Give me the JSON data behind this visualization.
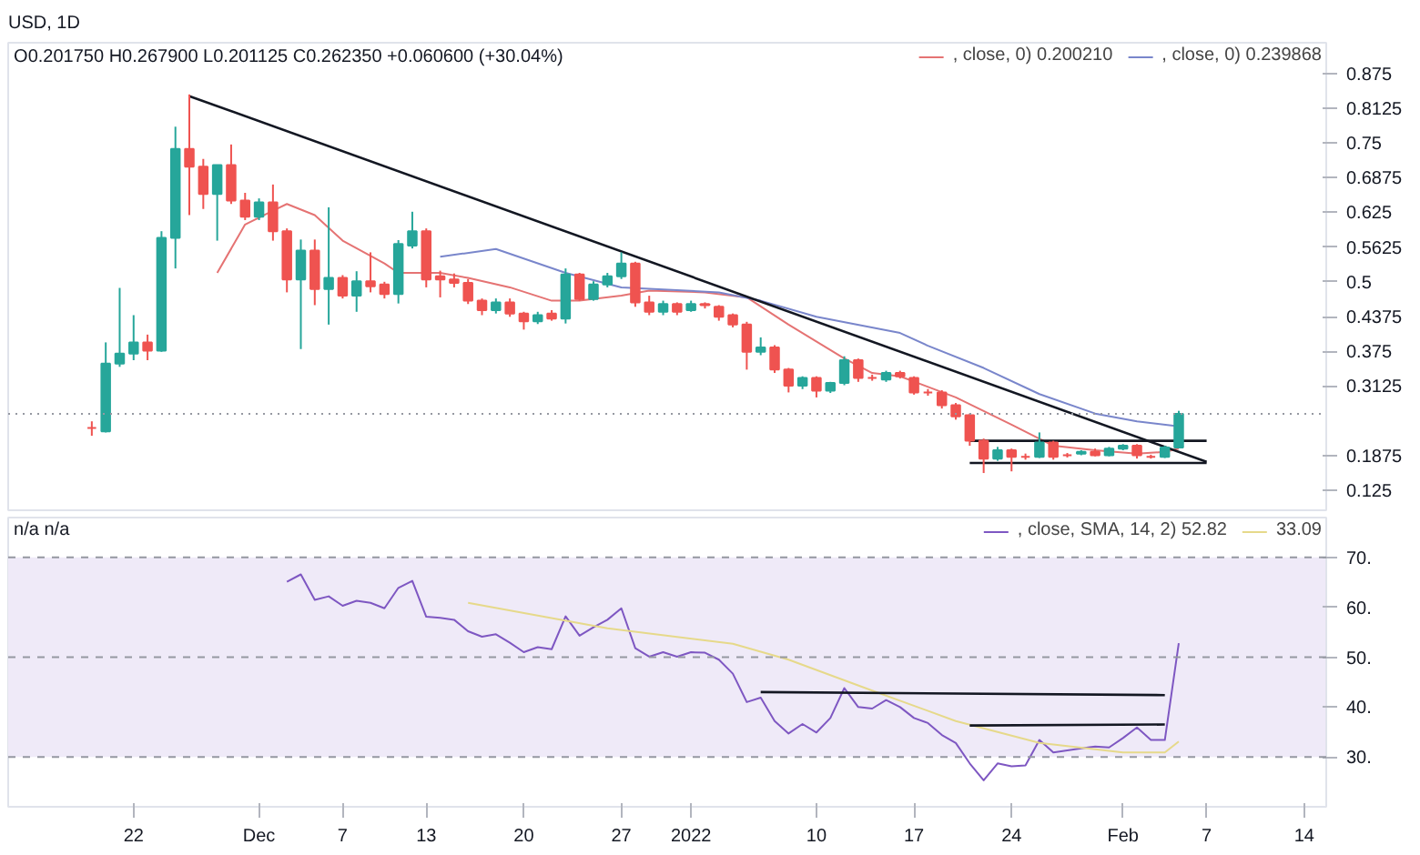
{
  "chart_data": [
    {
      "type": "candlestick",
      "title": "USD, 1D",
      "annotations": [
        "O0.201750 H0.267900 L0.201125 C0.262350 +0.060600 (+30.04%)"
      ],
      "x": [
        "2021-11-19",
        "2021-11-20",
        "2021-11-21",
        "2021-11-22",
        "2021-11-23",
        "2021-11-24",
        "2021-11-25",
        "2021-11-26",
        "2021-11-27",
        "2021-11-28",
        "2021-11-29",
        "2021-11-30",
        "2021-12-01",
        "2021-12-02",
        "2021-12-03",
        "2021-12-04",
        "2021-12-05",
        "2021-12-06",
        "2021-12-07",
        "2021-12-08",
        "2021-12-09",
        "2021-12-10",
        "2021-12-11",
        "2021-12-12",
        "2021-12-13",
        "2021-12-14",
        "2021-12-15",
        "2021-12-16",
        "2021-12-17",
        "2021-12-18",
        "2021-12-19",
        "2021-12-20",
        "2021-12-21",
        "2021-12-22",
        "2021-12-23",
        "2021-12-24",
        "2021-12-25",
        "2021-12-26",
        "2021-12-27",
        "2021-12-28",
        "2021-12-29",
        "2021-12-30",
        "2021-12-31",
        "2022-01-01",
        "2022-01-02",
        "2022-01-03",
        "2022-01-04",
        "2022-01-05",
        "2022-01-06",
        "2022-01-07",
        "2022-01-08",
        "2022-01-09",
        "2022-01-10",
        "2022-01-11",
        "2022-01-12",
        "2022-01-13",
        "2022-01-14",
        "2022-01-15",
        "2022-01-16",
        "2022-01-17",
        "2022-01-18",
        "2022-01-19",
        "2022-01-20",
        "2022-01-21",
        "2022-01-22",
        "2022-01-23",
        "2022-01-24",
        "2022-01-25",
        "2022-01-26",
        "2022-01-27",
        "2022-01-28",
        "2022-01-29",
        "2022-01-30",
        "2022-01-31",
        "2022-02-01",
        "2022-02-02",
        "2022-02-03",
        "2022-02-04",
        "2022-02-05"
      ],
      "ohlc": [
        [
          0.237,
          0.249,
          0.223,
          0.237
        ],
        [
          0.231,
          0.391,
          0.229,
          0.353
        ],
        [
          0.353,
          0.489,
          0.347,
          0.371
        ],
        [
          0.371,
          0.44,
          0.359,
          0.391
        ],
        [
          0.391,
          0.405,
          0.359,
          0.376
        ],
        [
          0.376,
          0.591,
          0.374,
          0.579
        ],
        [
          0.579,
          0.779,
          0.524,
          0.739
        ],
        [
          0.739,
          0.837,
          0.62,
          0.707
        ],
        [
          0.707,
          0.721,
          0.631,
          0.658
        ],
        [
          0.658,
          0.71,
          0.574,
          0.71
        ],
        [
          0.71,
          0.747,
          0.64,
          0.646
        ],
        [
          0.646,
          0.66,
          0.611,
          0.617
        ],
        [
          0.617,
          0.65,
          0.611,
          0.643
        ],
        [
          0.643,
          0.675,
          0.574,
          0.591
        ],
        [
          0.591,
          0.596,
          0.481,
          0.504
        ],
        [
          0.504,
          0.576,
          0.379,
          0.556
        ],
        [
          0.556,
          0.576,
          0.458,
          0.487
        ],
        [
          0.487,
          0.634,
          0.423,
          0.507
        ],
        [
          0.507,
          0.512,
          0.47,
          0.475
        ],
        [
          0.475,
          0.519,
          0.446,
          0.501
        ],
        [
          0.501,
          0.553,
          0.481,
          0.492
        ],
        [
          0.495,
          0.5,
          0.47,
          0.478
        ],
        [
          0.478,
          0.575,
          0.461,
          0.568
        ],
        [
          0.565,
          0.626,
          0.56,
          0.591
        ],
        [
          0.591,
          0.596,
          0.49,
          0.504
        ],
        [
          0.51,
          0.52,
          0.472,
          0.504
        ],
        [
          0.504,
          0.515,
          0.49,
          0.498
        ],
        [
          0.498,
          0.505,
          0.46,
          0.466
        ],
        [
          0.466,
          0.47,
          0.44,
          0.449
        ],
        [
          0.449,
          0.47,
          0.443,
          0.463
        ],
        [
          0.463,
          0.47,
          0.437,
          0.443
        ],
        [
          0.443,
          0.446,
          0.414,
          0.429
        ],
        [
          0.429,
          0.446,
          0.424,
          0.44
        ],
        [
          0.443,
          0.449,
          0.43,
          0.434
        ],
        [
          0.434,
          0.524,
          0.425,
          0.513
        ],
        [
          0.513,
          0.516,
          0.466,
          0.469
        ],
        [
          0.469,
          0.501,
          0.466,
          0.495
        ],
        [
          0.495,
          0.516,
          0.49,
          0.51
        ],
        [
          0.51,
          0.553,
          0.505,
          0.533
        ],
        [
          0.533,
          0.536,
          0.455,
          0.463
        ],
        [
          0.463,
          0.475,
          0.44,
          0.446
        ],
        [
          0.446,
          0.466,
          0.44,
          0.46
        ],
        [
          0.46,
          0.463,
          0.44,
          0.446
        ],
        [
          0.449,
          0.466,
          0.446,
          0.46
        ],
        [
          0.46,
          0.463,
          0.452,
          0.458
        ],
        [
          0.455,
          0.458,
          0.43,
          0.437
        ],
        [
          0.44,
          0.443,
          0.418,
          0.423
        ],
        [
          0.423,
          0.428,
          0.342,
          0.374
        ],
        [
          0.374,
          0.4,
          0.368,
          0.382
        ],
        [
          0.382,
          0.386,
          0.336,
          0.342
        ],
        [
          0.342,
          0.345,
          0.301,
          0.313
        ],
        [
          0.313,
          0.33,
          0.307,
          0.327
        ],
        [
          0.327,
          0.33,
          0.292,
          0.304
        ],
        [
          0.304,
          0.32,
          0.3,
          0.318
        ],
        [
          0.318,
          0.366,
          0.314,
          0.359
        ],
        [
          0.359,
          0.362,
          0.32,
          0.327
        ],
        [
          0.327,
          0.333,
          0.322,
          0.327
        ],
        [
          0.324,
          0.34,
          0.32,
          0.336
        ],
        [
          0.336,
          0.34,
          0.326,
          0.33
        ],
        [
          0.327,
          0.33,
          0.297,
          0.301
        ],
        [
          0.301,
          0.307,
          0.295,
          0.301
        ],
        [
          0.301,
          0.305,
          0.272,
          0.278
        ],
        [
          0.278,
          0.282,
          0.252,
          0.258
        ],
        [
          0.26,
          0.263,
          0.205,
          0.214
        ],
        [
          0.214,
          0.218,
          0.156,
          0.182
        ],
        [
          0.182,
          0.203,
          0.178,
          0.197
        ],
        [
          0.197,
          0.2,
          0.159,
          0.185
        ],
        [
          0.185,
          0.191,
          0.18,
          0.185
        ],
        [
          0.185,
          0.229,
          0.183,
          0.211
        ],
        [
          0.211,
          0.214,
          0.18,
          0.185
        ],
        [
          0.188,
          0.192,
          0.184,
          0.188
        ],
        [
          0.191,
          0.197,
          0.188,
          0.194
        ],
        [
          0.194,
          0.2,
          0.186,
          0.188
        ],
        [
          0.188,
          0.203,
          0.186,
          0.2
        ],
        [
          0.2,
          0.208,
          0.197,
          0.205
        ],
        [
          0.205,
          0.208,
          0.182,
          0.188
        ],
        [
          0.185,
          0.189,
          0.182,
          0.185
        ],
        [
          0.185,
          0.205,
          0.183,
          0.202
        ],
        [
          0.20175,
          0.2679,
          0.201125,
          0.26235
        ]
      ],
      "colors": [
        "#ef5350",
        "#26a69a",
        "#26a69a",
        "#26a69a",
        "#ef5350",
        "#26a69a",
        "#26a69a",
        "#ef5350",
        "#ef5350",
        "#26a69a",
        "#ef5350",
        "#ef5350",
        "#26a69a",
        "#ef5350",
        "#ef5350",
        "#26a69a",
        "#ef5350",
        "#26a69a",
        "#ef5350",
        "#26a69a",
        "#ef5350",
        "#ef5350",
        "#26a69a",
        "#26a69a",
        "#ef5350",
        "#ef5350",
        "#ef5350",
        "#ef5350",
        "#ef5350",
        "#26a69a",
        "#ef5350",
        "#ef5350",
        "#26a69a",
        "#ef5350",
        "#26a69a",
        "#ef5350",
        "#26a69a",
        "#26a69a",
        "#26a69a",
        "#ef5350",
        "#ef5350",
        "#26a69a",
        "#ef5350",
        "#26a69a",
        "#ef5350",
        "#ef5350",
        "#ef5350",
        "#ef5350",
        "#26a69a",
        "#ef5350",
        "#ef5350",
        "#26a69a",
        "#ef5350",
        "#26a69a",
        "#26a69a",
        "#ef5350",
        "#ef5350",
        "#26a69a",
        "#ef5350",
        "#ef5350",
        "#ef5350",
        "#ef5350",
        "#ef5350",
        "#ef5350",
        "#ef5350",
        "#26a69a",
        "#ef5350",
        "#ef5350",
        "#26a69a",
        "#ef5350",
        "#ef5350",
        "#26a69a",
        "#ef5350",
        "#26a69a",
        "#26a69a",
        "#ef5350",
        "#ef5350",
        "#26a69a",
        "#26a69a"
      ],
      "series": [
        {
          "type": "line",
          "name": ", close, 0) 0.200210",
          "color": "#e57373",
          "x": [
            "2021-11-28",
            "2021-11-30",
            "2021-12-02",
            "2021-12-03",
            "2021-12-05",
            "2021-12-07",
            "2021-12-10",
            "2021-12-11",
            "2021-12-13",
            "2021-12-14",
            "2021-12-16",
            "2021-12-19",
            "2021-12-22",
            "2021-12-24",
            "2021-12-27",
            "2021-12-29",
            "2022-01-02",
            "2022-01-05",
            "2022-01-08",
            "2022-01-12",
            "2022-01-14",
            "2022-01-16",
            "2022-01-20",
            "2022-01-24",
            "2022-01-27",
            "2022-01-30",
            "2022-02-02",
            "2022-02-04",
            "2022-02-05"
          ],
          "values": [
            0.516,
            0.603,
            0.628,
            0.64,
            0.62,
            0.574,
            0.533,
            0.516,
            0.516,
            0.516,
            0.507,
            0.49,
            0.466,
            0.466,
            0.475,
            0.484,
            0.481,
            0.472,
            0.423,
            0.362,
            0.336,
            0.33,
            0.292,
            0.243,
            0.205,
            0.197,
            0.191,
            0.194,
            0.2
          ]
        },
        {
          "type": "line",
          "name": ", close, 0) 0.239868",
          "color": "#7986cb",
          "x": [
            "2021-12-14",
            "2021-12-18",
            "2021-12-23",
            "2021-12-27",
            "2022-01-03",
            "2022-01-06",
            "2022-01-10",
            "2022-01-16",
            "2022-01-18",
            "2022-01-22",
            "2022-01-26",
            "2022-01-30",
            "2022-02-02",
            "2022-02-05"
          ],
          "values": [
            0.545,
            0.559,
            0.516,
            0.49,
            0.481,
            0.466,
            0.437,
            0.408,
            0.385,
            0.345,
            0.298,
            0.263,
            0.249,
            0.24
          ]
        },
        {
          "type": "line",
          "color": "#131722",
          "x": [
            "2021-11-26",
            "2022-02-07"
          ],
          "values": [
            0.834,
            0.176
          ]
        },
        {
          "type": "line",
          "color": "#131722",
          "x": [
            "2022-01-21",
            "2022-02-07"
          ],
          "values": [
            0.214,
            0.214
          ]
        },
        {
          "type": "line",
          "color": "#131722",
          "x": [
            "2022-01-21",
            "2022-02-07"
          ],
          "values": [
            0.174,
            0.174
          ]
        }
      ],
      "ref_lines": [
        {
          "axis": "y",
          "value": 0.26235,
          "color": "#9598a1",
          "line_style": "dotted"
        }
      ],
      "xlim": [
        "2021-11-13",
        "2022-02-15T14:00"
      ],
      "ylim": [
        0.089,
        0.93
      ],
      "yticks": [
        0.875,
        0.8125,
        0.75,
        0.6875,
        0.625,
        0.5625,
        0.5,
        0.4375,
        0.375,
        0.3125,
        0.1875,
        0.125
      ],
      "tick_labels": "y",
      "legend": "top right",
      "grid": false
    },
    {
      "type": "line",
      "annotations": [
        "n/a n/a"
      ],
      "series": [
        {
          "name": ", close, SMA, 14, 2) 52.82",
          "color": "#7e57c2",
          "x": [
            "2021-12-03",
            "2021-12-04",
            "2021-12-05",
            "2021-12-06",
            "2021-12-07",
            "2021-12-08",
            "2021-12-09",
            "2021-12-10",
            "2021-12-11",
            "2021-12-12",
            "2021-12-13",
            "2021-12-14",
            "2021-12-15",
            "2021-12-16",
            "2021-12-17",
            "2021-12-18",
            "2021-12-19",
            "2021-12-20",
            "2021-12-21",
            "2021-12-22",
            "2021-12-23",
            "2021-12-24",
            "2021-12-25",
            "2021-12-26",
            "2021-12-27",
            "2021-12-28",
            "2021-12-29",
            "2021-12-30",
            "2021-12-31",
            "2022-01-01",
            "2022-01-02",
            "2022-01-03",
            "2022-01-04",
            "2022-01-05",
            "2022-01-06",
            "2022-01-07",
            "2022-01-08",
            "2022-01-09",
            "2022-01-10",
            "2022-01-11",
            "2022-01-12",
            "2022-01-13",
            "2022-01-14",
            "2022-01-15",
            "2022-01-16",
            "2022-01-17",
            "2022-01-18",
            "2022-01-19",
            "2022-01-20",
            "2022-01-21",
            "2022-01-22",
            "2022-01-23",
            "2022-01-24",
            "2022-01-25",
            "2022-01-26",
            "2022-01-27",
            "2022-01-28",
            "2022-01-29",
            "2022-01-30",
            "2022-01-31",
            "2022-02-01",
            "2022-02-02",
            "2022-02-03",
            "2022-02-04",
            "2022-02-05"
          ],
          "values": [
            65.1,
            66.6,
            61.5,
            62.2,
            60.3,
            61.3,
            60.9,
            59.8,
            63.9,
            65.3,
            58.1,
            57.9,
            57.5,
            55.2,
            54.1,
            54.6,
            52.9,
            51.0,
            52.0,
            51.6,
            58.2,
            54.3,
            56.0,
            57.5,
            59.8,
            51.8,
            50.1,
            51.0,
            50.1,
            51.0,
            50.9,
            49.5,
            46.7,
            41.0,
            41.9,
            37.2,
            34.7,
            36.6,
            34.9,
            37.8,
            43.8,
            40.0,
            39.7,
            41.4,
            40.0,
            37.8,
            36.8,
            34.4,
            32.8,
            28.7,
            25.3,
            28.7,
            28.1,
            28.3,
            33.4,
            30.9,
            31.3,
            31.7,
            32.1,
            31.9,
            33.8,
            35.9,
            33.4,
            33.4,
            52.8
          ]
        },
        {
          "name": "33.09",
          "color": "#e6d98a",
          "x": [
            "2021-12-16",
            "2021-12-26",
            "2022-01-04",
            "2022-01-08",
            "2022-01-14",
            "2022-01-20",
            "2022-01-26",
            "2022-02-01",
            "2022-02-04",
            "2022-02-05"
          ],
          "values": [
            60.9,
            55.8,
            52.7,
            49.5,
            43.3,
            37.2,
            32.8,
            30.9,
            30.9,
            33.1
          ]
        },
        {
          "color": "#131722",
          "x": [
            "2022-01-06",
            "2022-02-04"
          ],
          "values": [
            43.0,
            42.4
          ]
        },
        {
          "color": "#131722",
          "x": [
            "2022-01-21",
            "2022-02-04"
          ],
          "values": [
            36.3,
            36.5
          ]
        }
      ],
      "bands": [
        {
          "axis": "y",
          "from": 30,
          "to": 70,
          "color": "#efeaf8"
        }
      ],
      "ref_lines": [
        {
          "axis": "y",
          "value": 70,
          "color": "#9598a1",
          "line_style": "dashed"
        },
        {
          "axis": "y",
          "value": 50,
          "color": "#9598a1",
          "line_style": "dashed"
        },
        {
          "axis": "y",
          "value": 30,
          "color": "#9598a1",
          "line_style": "dashed"
        }
      ],
      "xlim": [
        "2021-11-13",
        "2022-02-15T14:00"
      ],
      "ylim": [
        20,
        78
      ],
      "xticks": [
        {
          "value": "2021-11-22",
          "label": "22"
        },
        {
          "value": "2021-12-01",
          "label": "Dec"
        },
        {
          "value": "2021-12-07",
          "label": "7"
        },
        {
          "value": "2021-12-13",
          "label": "13"
        },
        {
          "value": "2021-12-20",
          "label": "20"
        },
        {
          "value": "2021-12-27",
          "label": "27"
        },
        {
          "value": "2022-01-01",
          "label": "2022"
        },
        {
          "value": "2022-01-10",
          "label": "10"
        },
        {
          "value": "2022-01-17",
          "label": "17"
        },
        {
          "value": "2022-01-24",
          "label": "24"
        },
        {
          "value": "2022-02-01",
          "label": "Feb"
        },
        {
          "value": "2022-02-07",
          "label": "7"
        },
        {
          "value": "2022-02-14",
          "label": "14"
        }
      ],
      "yticks": [
        {
          "value": 70,
          "label": "70."
        },
        {
          "value": 60,
          "label": "60."
        },
        {
          "value": 50,
          "label": "50."
        },
        {
          "value": 40,
          "label": "40."
        },
        {
          "value": 30,
          "label": "30."
        }
      ],
      "legend": "top right",
      "grid": false
    }
  ]
}
